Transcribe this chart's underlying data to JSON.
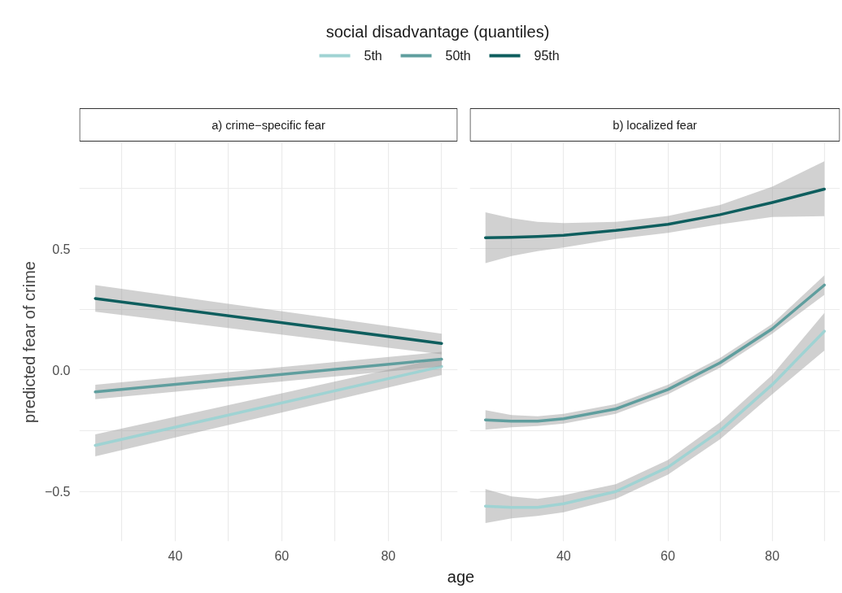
{
  "chart_data": [
    {
      "type": "line",
      "title": "a) crime−specific fear",
      "ylabel": "predicted fear of crime",
      "xlabel": "age",
      "legend_title": "social disadvantage (quantiles)",
      "legend": "top",
      "grid": true,
      "xlim": [
        22,
        93
      ],
      "ylim": [
        -0.705,
        0.936
      ],
      "xticks": [
        {
          "value": 30,
          "label": null
        },
        40,
        {
          "value": 50,
          "label": null
        },
        60,
        {
          "value": 70,
          "label": null
        },
        80,
        {
          "value": 90,
          "label": null
        }
      ],
      "yticks": [
        {
          "value": -0.5,
          "label": "−0.5"
        },
        {
          "value": -0.25,
          "label": null
        },
        {
          "value": 0,
          "label": "0.0"
        },
        {
          "value": 0.25,
          "label": null
        },
        0.5,
        {
          "value": 0.75,
          "label": null
        }
      ],
      "series": [
        {
          "name": "5th",
          "color": "#9fd3d3",
          "x": [
            25,
            90
          ],
          "values": [
            -0.31,
            0.015
          ],
          "lower": [
            -0.355,
            -0.02
          ],
          "upper": [
            -0.265,
            0.05
          ]
        },
        {
          "name": "50th",
          "color": "#5f9e9e",
          "x": [
            25,
            90
          ],
          "values": [
            -0.09,
            0.045
          ],
          "lower": [
            -0.12,
            0.015
          ],
          "upper": [
            -0.06,
            0.075
          ]
        },
        {
          "name": "95th",
          "color": "#0e5e5e",
          "x": [
            25,
            90
          ],
          "values": [
            0.295,
            0.11
          ],
          "lower": [
            0.24,
            0.065
          ],
          "upper": [
            0.35,
            0.15
          ]
        }
      ]
    },
    {
      "type": "line",
      "title": "b) localized fear",
      "tick_labels": "x",
      "grid": true,
      "xlim": [
        22,
        93
      ],
      "ylim": [
        -0.705,
        0.936
      ],
      "xticks": [
        {
          "value": 30,
          "label": null
        },
        40,
        {
          "value": 50,
          "label": null
        },
        60,
        {
          "value": 70,
          "label": null
        },
        80,
        {
          "value": 90,
          "label": null
        }
      ],
      "yticks": [
        {
          "value": -0.5,
          "label": null
        },
        {
          "value": -0.25,
          "label": null
        },
        {
          "value": 0,
          "label": null
        },
        {
          "value": 0.25,
          "label": null
        },
        {
          "value": 0.5,
          "label": null
        },
        {
          "value": 0.75,
          "label": null
        }
      ],
      "series": [
        {
          "name": "5th",
          "color": "#9fd3d3",
          "x": [
            25,
            30,
            35,
            40,
            50,
            60,
            70,
            80,
            90
          ],
          "values": [
            -0.56,
            -0.565,
            -0.565,
            -0.55,
            -0.5,
            -0.4,
            -0.25,
            -0.06,
            0.16
          ],
          "lower": [
            -0.63,
            -0.61,
            -0.6,
            -0.585,
            -0.53,
            -0.43,
            -0.285,
            -0.1,
            0.08
          ],
          "upper": [
            -0.49,
            -0.52,
            -0.53,
            -0.515,
            -0.47,
            -0.37,
            -0.215,
            -0.02,
            0.235
          ]
        },
        {
          "name": "50th",
          "color": "#5f9e9e",
          "x": [
            25,
            30,
            35,
            40,
            50,
            60,
            70,
            80,
            90
          ],
          "values": [
            -0.205,
            -0.21,
            -0.21,
            -0.2,
            -0.16,
            -0.08,
            0.03,
            0.17,
            0.35
          ],
          "lower": [
            -0.245,
            -0.235,
            -0.23,
            -0.22,
            -0.18,
            -0.1,
            0.01,
            0.15,
            0.31
          ],
          "upper": [
            -0.165,
            -0.185,
            -0.19,
            -0.18,
            -0.14,
            -0.06,
            0.05,
            0.19,
            0.39
          ]
        },
        {
          "name": "95th",
          "color": "#0e5e5e",
          "x": [
            25,
            30,
            35,
            40,
            50,
            60,
            70,
            80,
            90
          ],
          "values": [
            0.545,
            0.547,
            0.55,
            0.555,
            0.575,
            0.6,
            0.64,
            0.69,
            0.745
          ],
          "lower": [
            0.44,
            0.47,
            0.49,
            0.505,
            0.54,
            0.565,
            0.6,
            0.63,
            0.634
          ],
          "upper": [
            0.65,
            0.625,
            0.61,
            0.605,
            0.61,
            0.635,
            0.68,
            0.755,
            0.86
          ]
        }
      ]
    }
  ]
}
